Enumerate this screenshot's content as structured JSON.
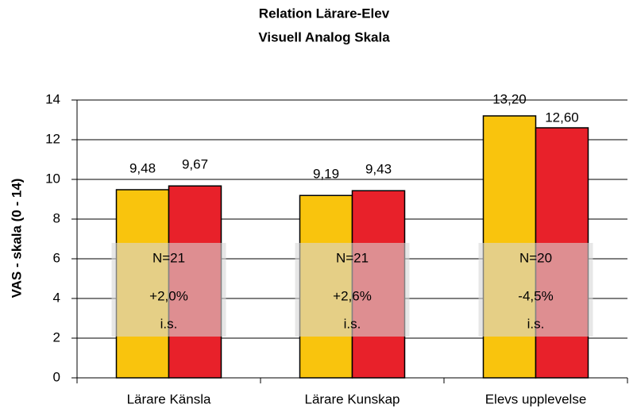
{
  "chart_data": {
    "type": "bar",
    "title": "Relation Lärare-Elev",
    "subtitle": "Visuell Analog Skala",
    "y_label": "VAS - skala (0 - 14)",
    "categories": [
      "Lärare Känsla",
      "Lärare Kunskap",
      "Elevs upplevelse"
    ],
    "series": [
      {
        "color": "#f9c40d",
        "values": [
          9.48,
          9.19,
          13.2
        ],
        "value_labels": [
          "9,48",
          "9,19",
          "13,20"
        ]
      },
      {
        "color": "#e8212a",
        "values": [
          9.67,
          9.43,
          12.6
        ],
        "value_labels": [
          "9,67",
          "9,43",
          "12,60"
        ]
      }
    ],
    "annotations": [
      [
        "N=21",
        "+2,0%",
        "i.s."
      ],
      [
        "N=21",
        "+2,6%",
        "i.s."
      ],
      [
        "N=20",
        "-4,5%",
        "i.s."
      ]
    ],
    "ylim": [
      0,
      14
    ],
    "yticks": [
      0,
      2,
      4,
      6,
      8,
      10,
      12,
      14
    ],
    "grid": true
  }
}
